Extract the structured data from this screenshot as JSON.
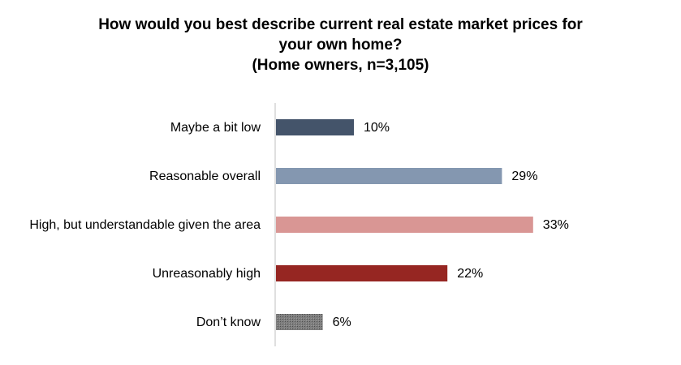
{
  "chart_data": {
    "type": "bar",
    "orientation": "horizontal",
    "title": [
      "How would you best describe current real estate market prices for",
      "your own home?",
      "(Home owners, n=3,105)"
    ],
    "categories": [
      "Maybe a bit low",
      "Reasonable overall",
      "High, but understandable given the area",
      "Unreasonably high",
      "Don’t know"
    ],
    "values": [
      10,
      29,
      33,
      22,
      6
    ],
    "value_labels": [
      "10%",
      "29%",
      "33%",
      "22%",
      "6%"
    ],
    "unit": "%",
    "xlim": [
      0,
      100
    ],
    "grid": false,
    "legend": "none",
    "colors": [
      "#44546a",
      "#8497b0",
      "#d99694",
      "#962622",
      "#7f7f7f"
    ],
    "patterns": [
      "solid",
      "solid",
      "solid",
      "solid",
      "crosshatch"
    ]
  }
}
